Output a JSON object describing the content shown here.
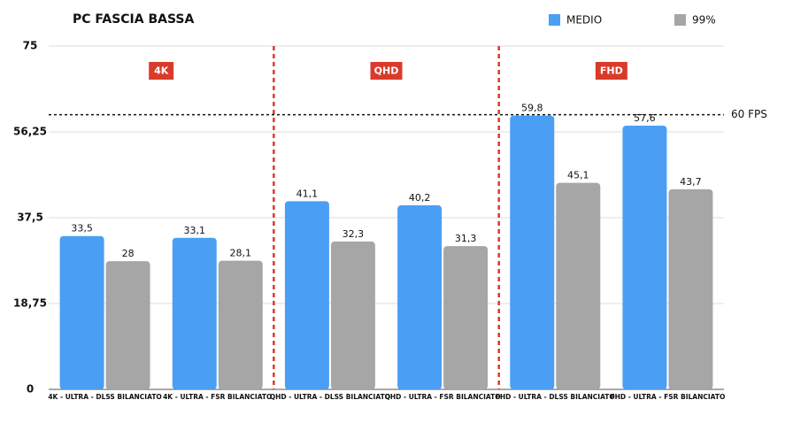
{
  "chart_data": {
    "type": "bar",
    "title": "PC FASCIA BASSA",
    "categories": [
      "4K - ULTRA - DLSS BILANCIATO",
      "4K - ULTRA - FSR BILANCIATO",
      "QHD - ULTRA - DLSS BILANCIATO",
      "QHD - ULTRA - FSR BILANCIATO",
      "FHD - ULTRA - DLSS BILANCIATO",
      "FHD - ULTRA - FSR BILANCIATO"
    ],
    "series": [
      {
        "name": "MEDIO",
        "color": "#4a9ff5",
        "values": [
          33.5,
          33.1,
          41.1,
          40.2,
          59.8,
          57.6
        ],
        "value_labels": [
          "33,5",
          "33,1",
          "41,1",
          "40,2",
          "59,8",
          "57,6"
        ]
      },
      {
        "name": "99%",
        "color": "#a6a6a6",
        "values": [
          28,
          28.1,
          32.3,
          31.3,
          45.1,
          43.7
        ],
        "value_labels": [
          "28",
          "28,1",
          "32,3",
          "31,3",
          "45,1",
          "43,7"
        ]
      }
    ],
    "groups": [
      "4K",
      "QHD",
      "FHD"
    ],
    "reference_line": {
      "value": 60,
      "label": "60 FPS"
    },
    "ylim": [
      0,
      75
    ],
    "yticks": [
      0,
      {
        "value": 18.75,
        "label": "18,75"
      },
      {
        "value": 37.5,
        "label": "37,5"
      },
      {
        "value": 56.25,
        "label": "56,25"
      },
      75
    ],
    "grid": true
  }
}
